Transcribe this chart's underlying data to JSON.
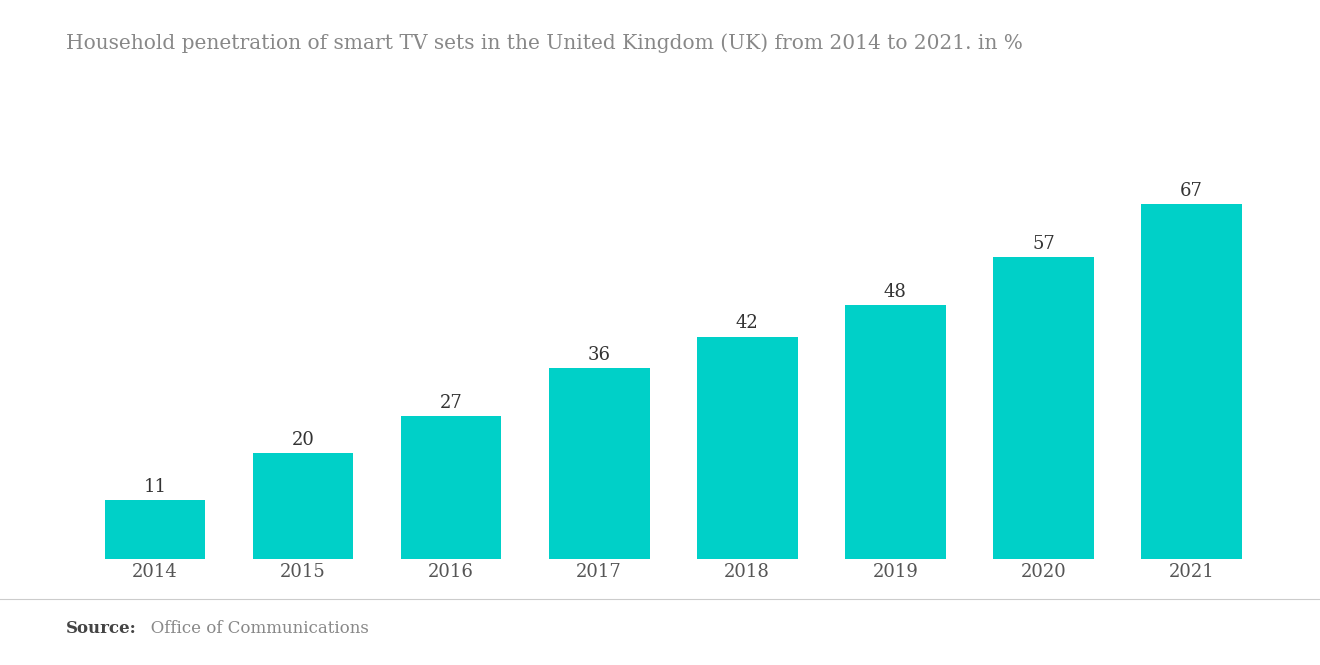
{
  "title": "Household penetration of smart TV sets in the United Kingdom (UK) from 2014 to 2021. in %",
  "categories": [
    "2014",
    "2015",
    "2016",
    "2017",
    "2018",
    "2019",
    "2020",
    "2021"
  ],
  "values": [
    11,
    20,
    27,
    36,
    42,
    48,
    57,
    67
  ],
  "bar_color": "#00D0C8",
  "background_color": "#ffffff",
  "title_color": "#888888",
  "label_color": "#333333",
  "tick_color": "#555555",
  "source_bold": "Source:",
  "source_rest": "   Office of Communications",
  "ylim": [
    0,
    78
  ],
  "title_fontsize": 14.5,
  "label_fontsize": 13,
  "tick_fontsize": 13,
  "source_fontsize": 12,
  "bar_width": 0.68
}
